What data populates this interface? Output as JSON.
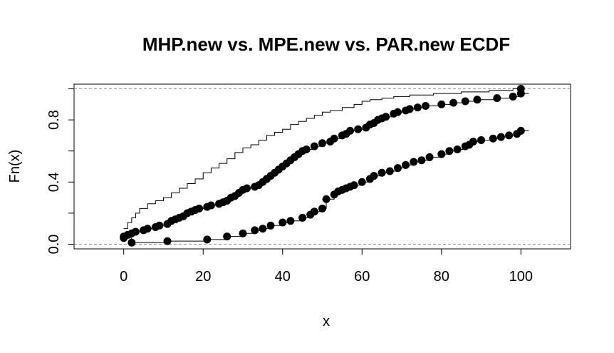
{
  "chart_data": {
    "type": "step-line",
    "title": "MHP.new vs. MPE.new vs. PAR.new ECDF",
    "xlabel": "x",
    "ylabel": "Fn(x)",
    "xlim": [
      -12.5,
      112.5
    ],
    "ylim": [
      -0.03,
      1.03
    ],
    "x_ticks": [
      0,
      20,
      40,
      60,
      80,
      100
    ],
    "x_tick_labels": [
      "0",
      "20",
      "40",
      "60",
      "80",
      "100"
    ],
    "y_ticks": [
      0.0,
      0.4,
      0.8
    ],
    "y_tick_labels": [
      "0.0",
      "0.4",
      "0.8"
    ],
    "reference_lines": [
      0,
      1
    ],
    "grid": false,
    "legend": "none",
    "colors": {
      "line": "#000000",
      "reference": "#999999"
    },
    "series": [
      {
        "style": "step-line",
        "points": [
          [
            0,
            0.1
          ],
          [
            1,
            0.14
          ],
          [
            2,
            0.17
          ],
          [
            3,
            0.2
          ],
          [
            4,
            0.23
          ],
          [
            6,
            0.26
          ],
          [
            8,
            0.28
          ],
          [
            10,
            0.3
          ],
          [
            12,
            0.33
          ],
          [
            14,
            0.36
          ],
          [
            16,
            0.39
          ],
          [
            18,
            0.42
          ],
          [
            20,
            0.46
          ],
          [
            22,
            0.49
          ],
          [
            24,
            0.52
          ],
          [
            26,
            0.55
          ],
          [
            28,
            0.59
          ],
          [
            30,
            0.62
          ],
          [
            32,
            0.64
          ],
          [
            34,
            0.67
          ],
          [
            36,
            0.7
          ],
          [
            38,
            0.72
          ],
          [
            40,
            0.74
          ],
          [
            42,
            0.77
          ],
          [
            44,
            0.79
          ],
          [
            46,
            0.81
          ],
          [
            48,
            0.83
          ],
          [
            50,
            0.85
          ],
          [
            52,
            0.86
          ],
          [
            55,
            0.88
          ],
          [
            58,
            0.9
          ],
          [
            60,
            0.92
          ],
          [
            62,
            0.93
          ],
          [
            65,
            0.94
          ],
          [
            68,
            0.95
          ],
          [
            72,
            0.96
          ],
          [
            78,
            0.97
          ],
          [
            85,
            0.98
          ],
          [
            92,
            0.99
          ],
          [
            98,
            1.0
          ]
        ]
      },
      {
        "style": "step-points",
        "points": [
          [
            0,
            0.05
          ],
          [
            1,
            0.06
          ],
          [
            2,
            0.07
          ],
          [
            3,
            0.08
          ],
          [
            5,
            0.09
          ],
          [
            6,
            0.1
          ],
          [
            8,
            0.11
          ],
          [
            9,
            0.12
          ],
          [
            11,
            0.13
          ],
          [
            12,
            0.15
          ],
          [
            13,
            0.16
          ],
          [
            14,
            0.17
          ],
          [
            15,
            0.18
          ],
          [
            16,
            0.2
          ],
          [
            17,
            0.21
          ],
          [
            18,
            0.22
          ],
          [
            19,
            0.23
          ],
          [
            21,
            0.24
          ],
          [
            22,
            0.25
          ],
          [
            24,
            0.26
          ],
          [
            25,
            0.27
          ],
          [
            26,
            0.28
          ],
          [
            27,
            0.3
          ],
          [
            28,
            0.31
          ],
          [
            29,
            0.33
          ],
          [
            30,
            0.35
          ],
          [
            31,
            0.36
          ],
          [
            33,
            0.37
          ],
          [
            34,
            0.38
          ],
          [
            35,
            0.4
          ],
          [
            36,
            0.42
          ],
          [
            37,
            0.44
          ],
          [
            38,
            0.46
          ],
          [
            39,
            0.48
          ],
          [
            40,
            0.5
          ],
          [
            41,
            0.52
          ],
          [
            42,
            0.54
          ],
          [
            43,
            0.56
          ],
          [
            44,
            0.58
          ],
          [
            45,
            0.6
          ],
          [
            46,
            0.61
          ],
          [
            48,
            0.63
          ],
          [
            50,
            0.65
          ],
          [
            52,
            0.66
          ],
          [
            53,
            0.68
          ],
          [
            55,
            0.7
          ],
          [
            56,
            0.71
          ],
          [
            57,
            0.73
          ],
          [
            59,
            0.74
          ],
          [
            61,
            0.75
          ],
          [
            62,
            0.77
          ],
          [
            63,
            0.78
          ],
          [
            64,
            0.8
          ],
          [
            65,
            0.81
          ],
          [
            66,
            0.82
          ],
          [
            68,
            0.84
          ],
          [
            69,
            0.85
          ],
          [
            71,
            0.86
          ],
          [
            72,
            0.87
          ],
          [
            74,
            0.88
          ],
          [
            76,
            0.89
          ],
          [
            80,
            0.9
          ],
          [
            83,
            0.91
          ],
          [
            86,
            0.92
          ],
          [
            89,
            0.93
          ],
          [
            94,
            0.94
          ],
          [
            98,
            0.95
          ],
          [
            100,
            0.97
          ]
        ]
      },
      {
        "style": "step-points",
        "points": [
          [
            0,
            0.04
          ],
          [
            2,
            0.01
          ],
          [
            11,
            0.02
          ],
          [
            21,
            0.03
          ],
          [
            26,
            0.05
          ],
          [
            30,
            0.07
          ],
          [
            33,
            0.09
          ],
          [
            35,
            0.1
          ],
          [
            37,
            0.12
          ],
          [
            40,
            0.14
          ],
          [
            42,
            0.15
          ],
          [
            45,
            0.17
          ],
          [
            47,
            0.19
          ],
          [
            48,
            0.21
          ],
          [
            50,
            0.23
          ],
          [
            51,
            0.29
          ],
          [
            53,
            0.32
          ],
          [
            54,
            0.34
          ],
          [
            55,
            0.35
          ],
          [
            56,
            0.36
          ],
          [
            57,
            0.37
          ],
          [
            58,
            0.38
          ],
          [
            60,
            0.4
          ],
          [
            62,
            0.42
          ],
          [
            63,
            0.44
          ],
          [
            65,
            0.46
          ],
          [
            67,
            0.47
          ],
          [
            69,
            0.49
          ],
          [
            71,
            0.51
          ],
          [
            73,
            0.53
          ],
          [
            75,
            0.54
          ],
          [
            77,
            0.56
          ],
          [
            80,
            0.58
          ],
          [
            82,
            0.6
          ],
          [
            84,
            0.61
          ],
          [
            86,
            0.63
          ],
          [
            87,
            0.64
          ],
          [
            88,
            0.66
          ],
          [
            90,
            0.67
          ],
          [
            93,
            0.68
          ],
          [
            95,
            0.69
          ],
          [
            97,
            0.7
          ],
          [
            99,
            0.71
          ],
          [
            100,
            0.73
          ]
        ]
      }
    ],
    "extra_point": [
      100,
      1.0
    ]
  }
}
